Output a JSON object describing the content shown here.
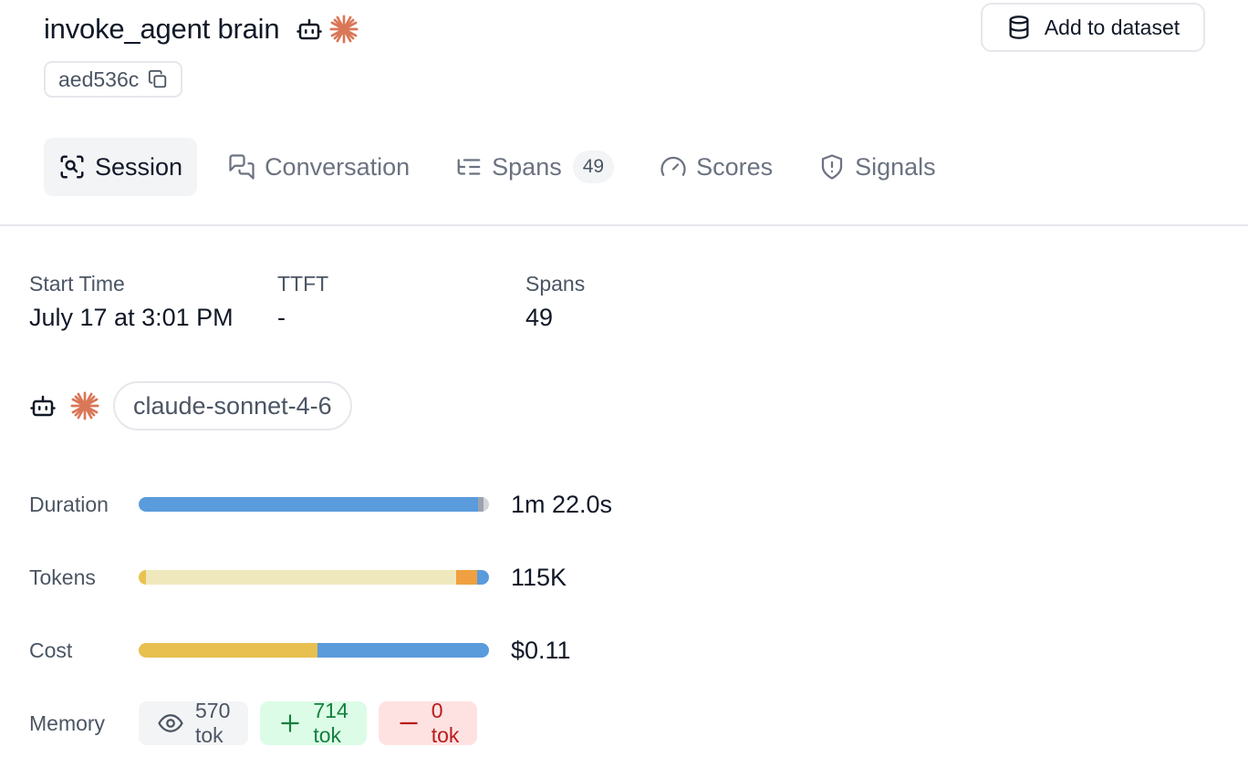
{
  "header": {
    "title": "invoke_agent brain",
    "hash": "aed536c",
    "add_button_label": "Add to dataset"
  },
  "tabs": [
    {
      "label": "Session",
      "icon": "session-icon",
      "active": true
    },
    {
      "label": "Conversation",
      "icon": "chat-icon",
      "active": false
    },
    {
      "label": "Spans",
      "icon": "list-tree-icon",
      "active": false,
      "count": "49"
    },
    {
      "label": "Scores",
      "icon": "gauge-icon",
      "active": false
    },
    {
      "label": "Signals",
      "icon": "shield-icon",
      "active": false
    }
  ],
  "stats": [
    {
      "label": "Start Time",
      "value": "July 17 at 3:01 PM"
    },
    {
      "label": "TTFT",
      "value": "-"
    },
    {
      "label": "Spans",
      "value": "49"
    }
  ],
  "model": {
    "name": "claude-sonnet-4-6",
    "icons": [
      "robot-icon",
      "anthropic-icon"
    ]
  },
  "metrics": {
    "duration": {
      "label": "Duration",
      "value": "1m 22.0s",
      "segments": [
        {
          "fraction": 0.97,
          "color": "#5a9bdc"
        },
        {
          "fraction": 0.015,
          "color": "#9ca3af"
        },
        {
          "fraction": 0.015,
          "color": "#d1d5db"
        }
      ]
    },
    "tokens": {
      "label": "Tokens",
      "value": "115K",
      "segments": [
        {
          "fraction": 0.02,
          "color": "#e8c34f"
        },
        {
          "fraction": 0.885,
          "color": "#efe8bd"
        },
        {
          "fraction": 0.062,
          "color": "#f0a040"
        },
        {
          "fraction": 0.033,
          "color": "#5a9bdc"
        }
      ]
    },
    "cost": {
      "label": "Cost",
      "value": "$0.11",
      "segments": [
        {
          "fraction": 0.51,
          "color": "#e8c050"
        },
        {
          "fraction": 0.49,
          "color": "#5a9bdc"
        }
      ]
    },
    "memory": {
      "label": "Memory",
      "read": "570 tok",
      "added": "714 tok",
      "removed": "0 tok"
    }
  },
  "colors": {
    "anthropic_accent": "#d97757",
    "border": "#e5e7eb",
    "muted_text": "#6b7280"
  }
}
